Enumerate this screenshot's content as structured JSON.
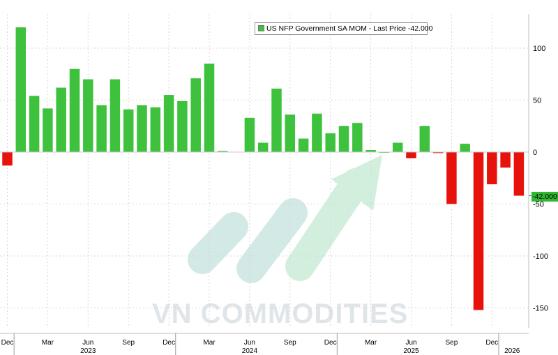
{
  "chart_data": {
    "type": "bar",
    "series": [
      {
        "name": "US NFP Government SA MOM",
        "values": [
          -13,
          120,
          54,
          42,
          62,
          80,
          70,
          45,
          70,
          41,
          45,
          43,
          55,
          49,
          71,
          85,
          1,
          null,
          33,
          9,
          61,
          36,
          13,
          37,
          18,
          25,
          28,
          2,
          0,
          9,
          -6,
          25,
          -1,
          -50,
          8,
          -152,
          -31,
          -15,
          -42
        ],
        "positive_color": "#3ec23e",
        "negative_color": "#e8120c"
      }
    ],
    "legend": {
      "label": "US NFP Government SA MOM - Last Price -42.000",
      "placement": "top-center"
    },
    "last_value": -42,
    "last_value_label": "-42.000",
    "ylim": [
      -170,
      140
    ],
    "yticks": [
      100,
      50,
      0,
      -50,
      -100,
      -150
    ],
    "ytick_labels": [
      "100",
      "50",
      "0",
      "-50",
      "-100",
      "-150"
    ],
    "y_axis_side": "right",
    "xticks": [
      {
        "label": "Dec",
        "index": 0
      },
      {
        "label": "Mar",
        "index": 3
      },
      {
        "label": "Jun",
        "index": 6
      },
      {
        "label": "Sep",
        "index": 9
      },
      {
        "label": "Dec",
        "index": 12
      },
      {
        "label": "Mar",
        "index": 15
      },
      {
        "label": "Jun",
        "index": 18
      },
      {
        "label": "Sep",
        "index": 21
      },
      {
        "label": "Dec",
        "index": 24
      },
      {
        "label": "Mar",
        "index": 27
      },
      {
        "label": "Jun",
        "index": 30
      },
      {
        "label": "Sep",
        "index": 33
      },
      {
        "label": "Dec",
        "index": 36
      }
    ],
    "year_labels": [
      {
        "label": "2023",
        "index": 6
      },
      {
        "label": "2024",
        "index": 18
      },
      {
        "label": "2025",
        "index": 30
      },
      {
        "label": "2026",
        "index": 37.5
      }
    ],
    "year_separators": [
      0.5,
      12.5,
      24.5,
      36.5
    ],
    "grid": true
  },
  "watermark": {
    "text": "VN COMMODITIES"
  }
}
